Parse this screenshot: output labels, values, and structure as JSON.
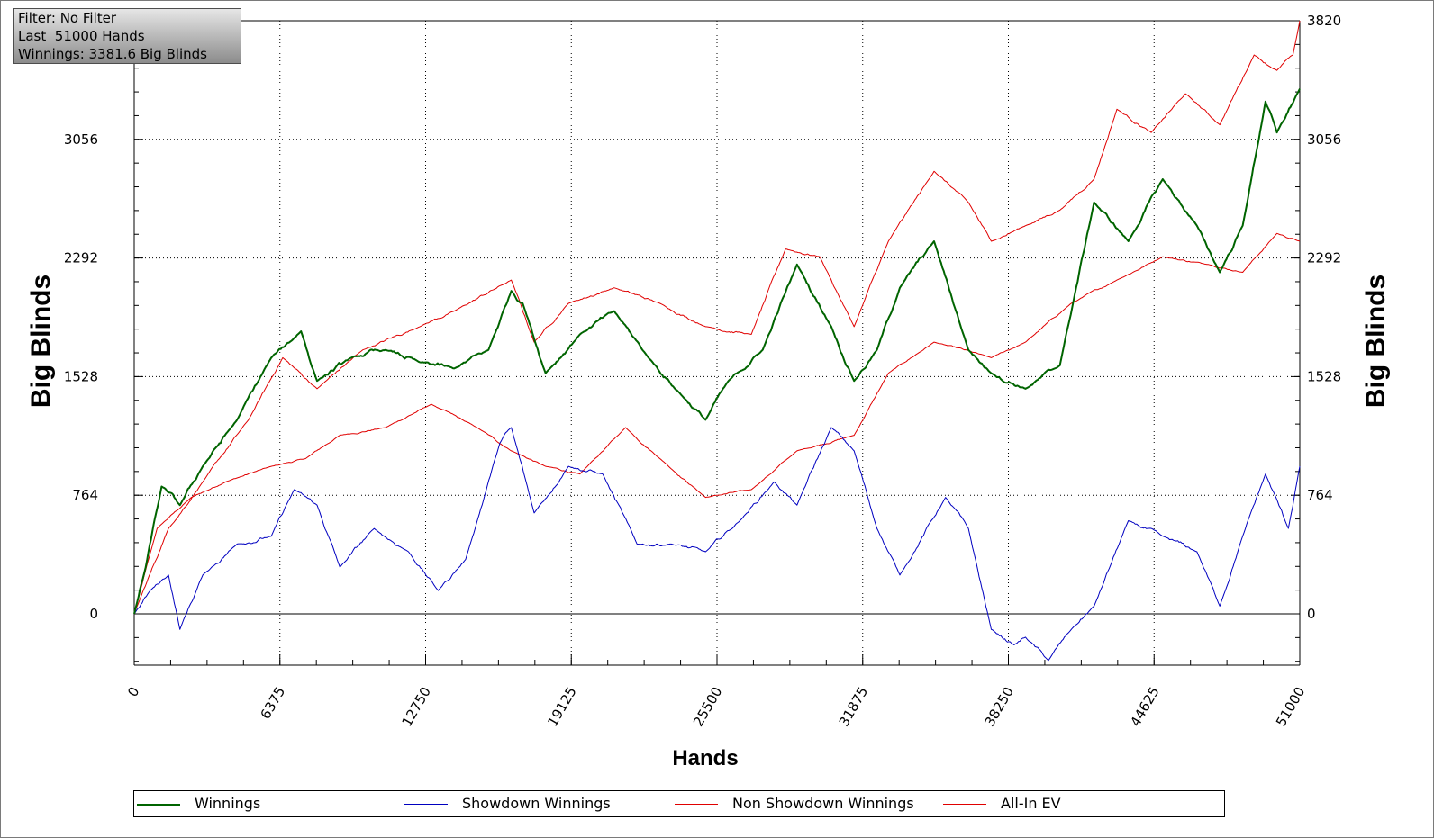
{
  "info_box": {
    "filter": "Filter: No Filter",
    "hands": "Last  51000 Hands",
    "winnings": "Winnings: 3381.6 Big Blinds"
  },
  "colors": {
    "winnings": "#006400",
    "showdown": "#0000c0",
    "non_showdown": "#e00000",
    "all_in_ev": "#e00000"
  },
  "chart_data": {
    "type": "line",
    "xlabel": "Hands",
    "ylabel": "Big Blinds",
    "xlim": [
      0,
      51000
    ],
    "ylim": [
      -320,
      3820
    ],
    "x_ticks": [
      "0",
      "6375",
      "12750",
      "19125",
      "25500",
      "31875",
      "38250",
      "44625",
      "51000"
    ],
    "y_ticks": [
      "0",
      "764",
      "1528",
      "2292",
      "3056",
      "3820"
    ],
    "grid": true,
    "legend_position": "bottom",
    "series": [
      {
        "name": "Winnings",
        "color": "#006400",
        "x": [
          0,
          500,
          1200,
          2000,
          3000,
          4500,
          6000,
          7300,
          8000,
          9500,
          11000,
          12500,
          14000,
          15500,
          16500,
          17000,
          18000,
          19500,
          21000,
          22500,
          24000,
          25000,
          26000,
          27500,
          29000,
          30500,
          31500,
          32500,
          33500,
          35000,
          36500,
          37500,
          39000,
          40500,
          42000,
          43500,
          45000,
          46500,
          47500,
          48500,
          49500,
          50000,
          51000
        ],
        "y": [
          0,
          300,
          820,
          700,
          950,
          1250,
          1650,
          1820,
          1500,
          1650,
          1700,
          1620,
          1580,
          1700,
          2080,
          2000,
          1550,
          1800,
          1950,
          1650,
          1400,
          1250,
          1500,
          1700,
          2250,
          1850,
          1500,
          1700,
          2100,
          2400,
          1700,
          1550,
          1450,
          1600,
          2650,
          2400,
          2800,
          2500,
          2200,
          2500,
          3300,
          3100,
          3381.6
        ]
      },
      {
        "name": "Showdown Winnings",
        "color": "#0000c0",
        "x": [
          0,
          700,
          1500,
          2000,
          3000,
          4500,
          6000,
          7000,
          8000,
          9000,
          10500,
          12000,
          13300,
          14500,
          16000,
          16500,
          17500,
          19000,
          20500,
          22000,
          23500,
          25000,
          26500,
          28000,
          29000,
          30500,
          31500,
          32500,
          33500,
          35500,
          36500,
          37500,
          38500,
          39000,
          40000,
          41000,
          42000,
          43500,
          45000,
          46500,
          47500,
          48500,
          49500,
          50500,
          51000
        ],
        "y": [
          0,
          150,
          250,
          -100,
          250,
          450,
          500,
          800,
          700,
          300,
          550,
          400,
          150,
          350,
          1100,
          1200,
          650,
          950,
          900,
          450,
          450,
          400,
          600,
          850,
          700,
          1200,
          1050,
          550,
          250,
          750,
          550,
          -100,
          -200,
          -150,
          -300,
          -100,
          50,
          600,
          500,
          400,
          50,
          500,
          900,
          550,
          950
        ]
      },
      {
        "name": "Non Showdown Winnings",
        "color": "#e00000",
        "x": [
          0,
          1000,
          2500,
          4000,
          6000,
          7500,
          9000,
          11000,
          13000,
          15000,
          16500,
          18000,
          19500,
          21500,
          23000,
          25000,
          27000,
          29000,
          31500,
          33000,
          35000,
          37500,
          39000,
          41000,
          43000,
          45000,
          47000,
          48500,
          50000,
          51000
        ],
        "y": [
          0,
          550,
          750,
          850,
          950,
          1000,
          1150,
          1200,
          1350,
          1200,
          1050,
          950,
          900,
          1200,
          1000,
          750,
          800,
          1050,
          1150,
          1550,
          1750,
          1650,
          1750,
          2000,
          2150,
          2300,
          2250,
          2200,
          2450,
          2400
        ]
      },
      {
        "name": "All-In EV",
        "color": "#e00000",
        "x": [
          0,
          1500,
          3000,
          5000,
          6500,
          8000,
          10000,
          12500,
          14000,
          16500,
          17500,
          19000,
          21000,
          23000,
          25000,
          27000,
          28500,
          30000,
          31500,
          33000,
          35000,
          36500,
          37500,
          39000,
          40500,
          42000,
          43000,
          44500,
          46000,
          47500,
          49000,
          50000,
          50700,
          51000
        ],
        "y": [
          0,
          550,
          850,
          1250,
          1650,
          1450,
          1700,
          1850,
          1950,
          2150,
          1750,
          2000,
          2100,
          2000,
          1850,
          1800,
          2350,
          2300,
          1850,
          2400,
          2850,
          2650,
          2400,
          2500,
          2600,
          2800,
          3250,
          3100,
          3350,
          3150,
          3600,
          3500,
          3600,
          3820
        ]
      }
    ]
  },
  "legend": {
    "items": [
      "Winnings",
      "Showdown Winnings",
      "Non Showdown Winnings",
      "All-In EV"
    ]
  }
}
